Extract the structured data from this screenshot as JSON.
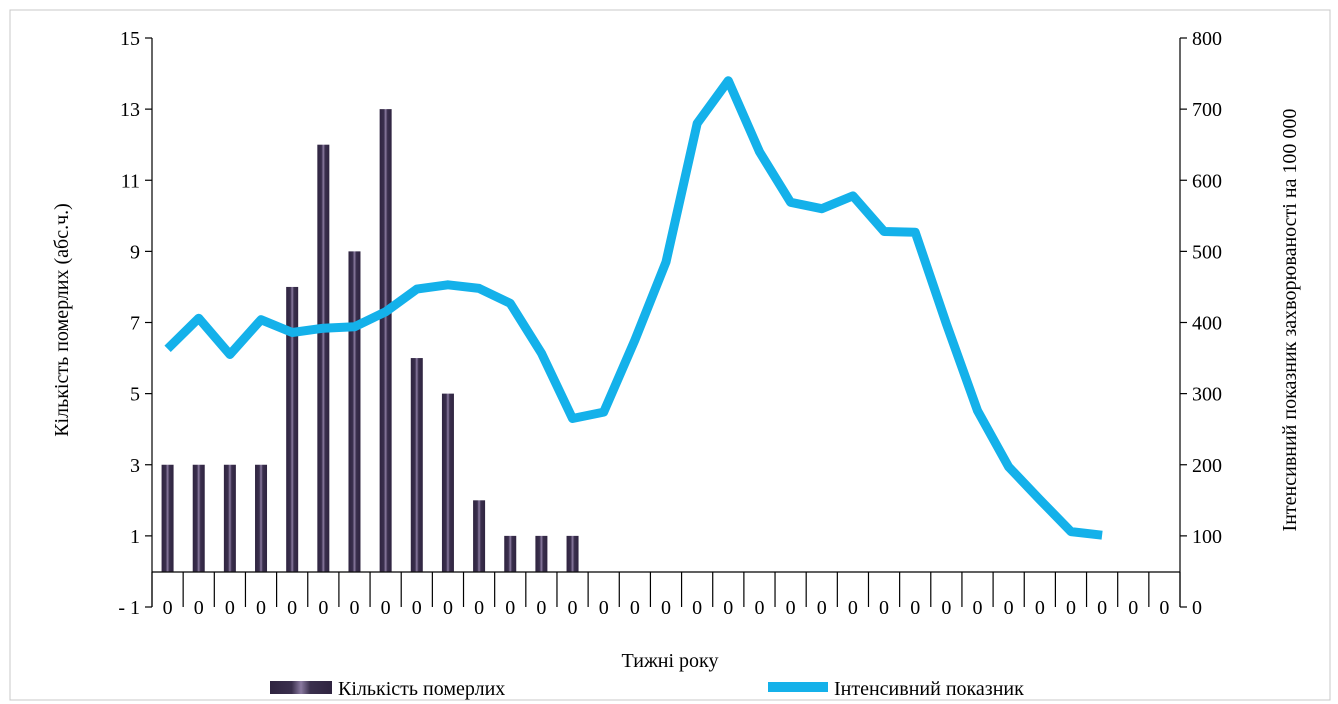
{
  "chart_data": {
    "type": "bar+line",
    "xlabel": "Тижні року",
    "ylabel_left": "Кількість померлих (абс.ч.)",
    "ylabel_right": "Інтенсивний показник захворюваності на 100 000",
    "ylim_left": [
      -1,
      15
    ],
    "yticks_left": [
      -1,
      1,
      3,
      5,
      7,
      9,
      11,
      13,
      15
    ],
    "ylim_right": [
      0,
      800
    ],
    "yticks_right": [
      0,
      100,
      200,
      300,
      400,
      500,
      600,
      700,
      800
    ],
    "categories": [
      "0",
      "0",
      "0",
      "0",
      "0",
      "0",
      "0",
      "0",
      "0",
      "0",
      "0",
      "0",
      "0",
      "0",
      "0",
      "0",
      "0",
      "0",
      "0",
      "0",
      "0",
      "0",
      "0",
      "0",
      "0",
      "0",
      "0",
      "0",
      "0",
      "0",
      "0",
      "0",
      "0"
    ],
    "series": [
      {
        "name": "Кількість померлих",
        "type": "bar",
        "axis": "left",
        "values": [
          3,
          3,
          3,
          3,
          8,
          12,
          9,
          13,
          6,
          5,
          2,
          1,
          1,
          1,
          null,
          null,
          null,
          null,
          null,
          null,
          null,
          null,
          null,
          null,
          null,
          null,
          null,
          null,
          null,
          null,
          null,
          null,
          null
        ]
      },
      {
        "name": "Інтенсивний показник",
        "type": "line",
        "axis": "right",
        "values": [
          363,
          406,
          355,
          404,
          386,
          392,
          394,
          415,
          447,
          453,
          448,
          427,
          357,
          265,
          274,
          375,
          485,
          680,
          740,
          640,
          569,
          560,
          578,
          528,
          527,
          398,
          276,
          197,
          151,
          106,
          101,
          null,
          null
        ]
      }
    ],
    "legend": "bottom",
    "colors": {
      "bar": "#2f2440",
      "bar_highlight": "#8a7aa0",
      "line": "#14b1ea",
      "axis": "#000000",
      "frame": "#c8c8c8"
    }
  }
}
